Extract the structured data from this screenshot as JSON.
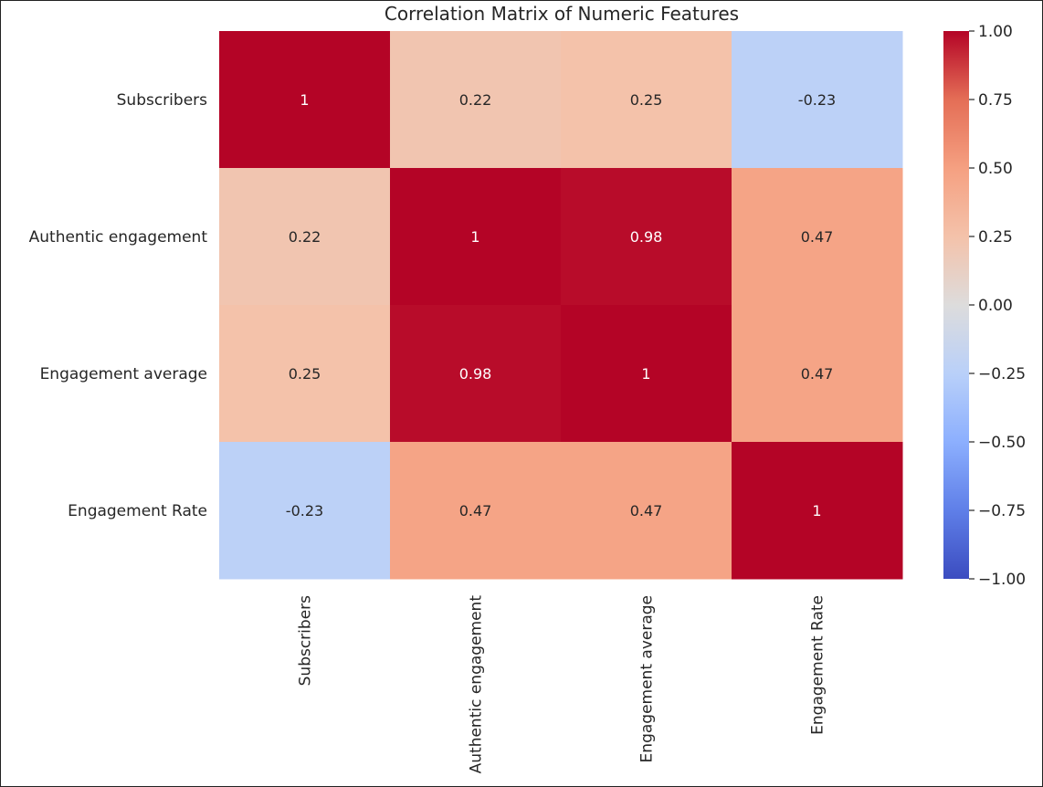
{
  "chart_data": {
    "type": "heatmap",
    "title": "Correlation Matrix of Numeric Features",
    "row_labels": [
      "Subscribers",
      "Authentic engagement",
      "Engagement average",
      "Engagement Rate"
    ],
    "col_labels": [
      "Subscribers",
      "Authentic engagement",
      "Engagement average",
      "Engagement Rate"
    ],
    "values": [
      [
        1,
        0.22,
        0.25,
        -0.23
      ],
      [
        0.22,
        1,
        0.98,
        0.47
      ],
      [
        0.25,
        0.98,
        1,
        0.47
      ],
      [
        -0.23,
        0.47,
        0.47,
        1
      ]
    ],
    "cell_labels": [
      [
        "1",
        "0.22",
        "0.25",
        "-0.23"
      ],
      [
        "0.22",
        "1",
        "0.98",
        "0.47"
      ],
      [
        "0.25",
        "0.98",
        "1",
        "0.47"
      ],
      [
        "-0.23",
        "0.47",
        "0.47",
        "1"
      ]
    ],
    "colormap": "coolwarm",
    "vmin": -1.0,
    "vmax": 1.0,
    "colorbar_ticks": [
      1.0,
      0.75,
      0.5,
      0.25,
      0.0,
      -0.25,
      -0.5,
      -0.75,
      -1.0
    ],
    "colorbar_tick_labels": [
      "1.00",
      "0.75",
      "0.50",
      "0.25",
      "0.00",
      "−0.25",
      "−0.50",
      "−0.75",
      "−1.00"
    ],
    "annotated": true,
    "grid": false
  }
}
